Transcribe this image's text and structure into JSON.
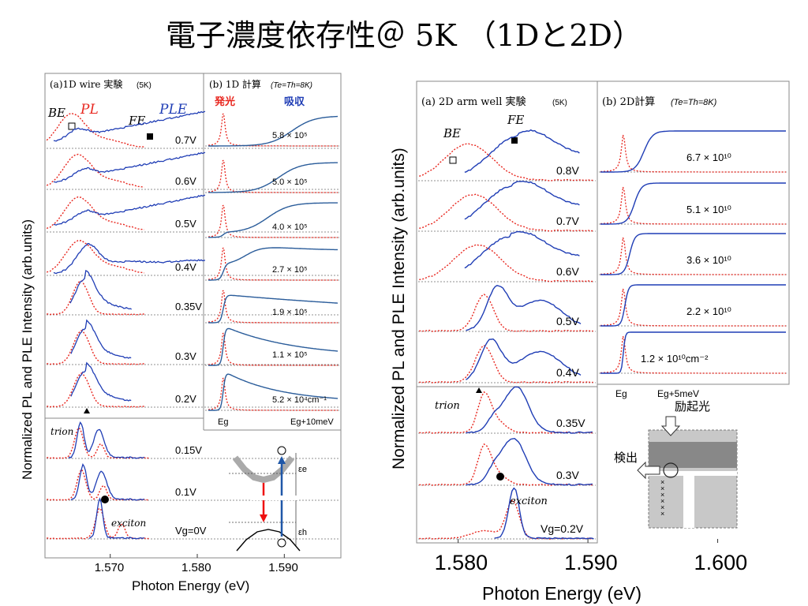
{
  "title": "電子濃度依存性＠ 5K （1Dと2D）",
  "colors": {
    "pl": "#e8271f",
    "ple": "#1f3db5",
    "calc": "#2a5c9a",
    "frame": "#888888",
    "exp_arrow": "#e11",
    "abs_arrow": "#1f57a8"
  },
  "left_figure": {
    "panel_a_title": "(a)1D wire 実験",
    "panel_a_temp": "(5K)",
    "panel_b_title": "(b) 1D 計算",
    "panel_b_cond": "(Te=Th=8K)",
    "label_pl": "PL",
    "label_ple": "PLE",
    "label_be": "BE",
    "label_fe": "FE",
    "label_emission": "発光",
    "label_absorption": "吸収",
    "label_trion": "trion",
    "label_exciton": "exciton",
    "ylabel": "Normalized PL and PLE Intensity (arb.units)",
    "xlabel": "Photon Energy (eV)",
    "xticks": [
      "1.570",
      "1.580",
      "1.590"
    ],
    "calc_xticks": [
      "Eg",
      "Eg+10meV"
    ],
    "band_label_e": "εe",
    "band_label_h": "εh"
  },
  "right_figure": {
    "panel_a_title": "(a) 2D arm well 実験",
    "panel_a_temp": "(5K)",
    "panel_b_title": "(b) 2D計算",
    "panel_b_cond": "(Te=Th=8K)",
    "label_be": "BE",
    "label_fe": "FE",
    "label_trion": "trion",
    "label_exciton": "exciton",
    "ylabel": "Normalized PL and PLE Intensity (arb.units)",
    "xlabel": "Photon Energy (eV)",
    "xticks": [
      "1.580",
      "1.590",
      "1.600"
    ],
    "calc_xticks": [
      "Eg",
      "Eg+5meV"
    ],
    "label_excitation": "励起光",
    "label_detection": "検出"
  },
  "chart_data": [
    {
      "type": "line",
      "title": "(a)1D wire 実験 (5K)",
      "xlabel": "Photon Energy (eV)",
      "ylabel": "Normalized PL and PLE Intensity (arb.units)",
      "xlim": [
        1.5625,
        1.5965
      ],
      "xticks": [
        1.57,
        1.58,
        1.59
      ],
      "traces": [
        {
          "label": "0.7V",
          "pl_peak": 1.5655,
          "ple_type": "rise"
        },
        {
          "label": "0.6V",
          "pl_peak": 1.5662,
          "ple_type": "rise"
        },
        {
          "label": "0.5V",
          "pl_peak": 1.5663,
          "ple_type": "rise"
        },
        {
          "label": "0.4V",
          "pl_peak": 1.5664,
          "ple_type": "hump"
        },
        {
          "label": "0.35V",
          "pl_peak": 1.5666,
          "ple_type": "edge"
        },
        {
          "label": "0.3V",
          "pl_peak": 1.5667,
          "ple_type": "edge"
        },
        {
          "label": "0.2V",
          "pl_peak": 1.5667,
          "ple_type": "edge"
        },
        {
          "label": "0.15V",
          "pl_peak": 1.5664,
          "ple_type": "trion"
        },
        {
          "label": "0.1V",
          "pl_peak": 1.5667,
          "ple_type": "trion"
        },
        {
          "label": "Vg=0V",
          "pl_peak": 1.5688,
          "ple_type": "exciton"
        }
      ]
    },
    {
      "type": "line",
      "title": "(b) 1D 計算 (Te=Th=8K)",
      "xlabels": [
        "Eg",
        "Eg+10meV"
      ],
      "traces": [
        {
          "label": "5.8×10^5",
          "display": "5.8 × 10⁵"
        },
        {
          "label": "5.0×10^5",
          "display": "5.0 × 10⁵"
        },
        {
          "label": "4.0×10^5",
          "display": "4.0 × 10⁵"
        },
        {
          "label": "2.7×10^5",
          "display": "2.7 × 10⁵"
        },
        {
          "label": "1.9×10^5",
          "display": "1.9 × 10⁵"
        },
        {
          "label": "1.1×10^5",
          "display": "1.1 × 10⁵"
        },
        {
          "label": "5.2×10^4 cm^-1",
          "display": "5.2 × 10⁴cm⁻¹"
        }
      ]
    },
    {
      "type": "line",
      "title": "(a) 2D arm well 実験 (5K)",
      "xlabel": "Photon Energy (eV)",
      "ylabel": "Normalized PL and PLE Intensity (arb.units)",
      "xlim": [
        1.5768,
        1.6055
      ],
      "xticks": [
        1.58,
        1.59,
        1.6
      ],
      "traces": [
        {
          "label": "0.8V",
          "pl_peak": 1.5808,
          "ple_peak": 1.5847
        },
        {
          "label": "0.7V",
          "pl_peak": 1.5812,
          "ple_peak": 1.5842
        },
        {
          "label": "0.6V",
          "pl_peak": 1.5815,
          "ple_peak": 1.584
        },
        {
          "label": "0.5V",
          "pl_peak": 1.582,
          "ple_peak": 1.583
        },
        {
          "label": "0.4V",
          "pl_peak": 1.582,
          "ple_peak": 1.5825
        },
        {
          "label": "0.35V",
          "pl_peak": 1.582,
          "ple_peak": 1.5845
        },
        {
          "label": "0.3V",
          "pl_peak": 1.582,
          "ple_peak": 1.5843
        },
        {
          "label": "Vg=0.2V",
          "pl_peak": 1.5842,
          "ple_peak": 1.5843
        }
      ]
    },
    {
      "type": "line",
      "title": "(b) 2D計算 (Te=Th=8K)",
      "xlabels": [
        "Eg",
        "Eg+5meV"
      ],
      "traces": [
        {
          "label": "6.7×10^10",
          "display": "6.7 × 10¹⁰"
        },
        {
          "label": "5.1×10^10",
          "display": "5.1 × 10¹⁰"
        },
        {
          "label": "3.6×10^10",
          "display": "3.6 × 10¹⁰"
        },
        {
          "label": "2.2×10^10",
          "display": "2.2 × 10¹⁰"
        },
        {
          "label": "1.2×10^10 cm^-2",
          "display": "1.2 × 10¹⁰cm⁻²"
        }
      ]
    }
  ]
}
